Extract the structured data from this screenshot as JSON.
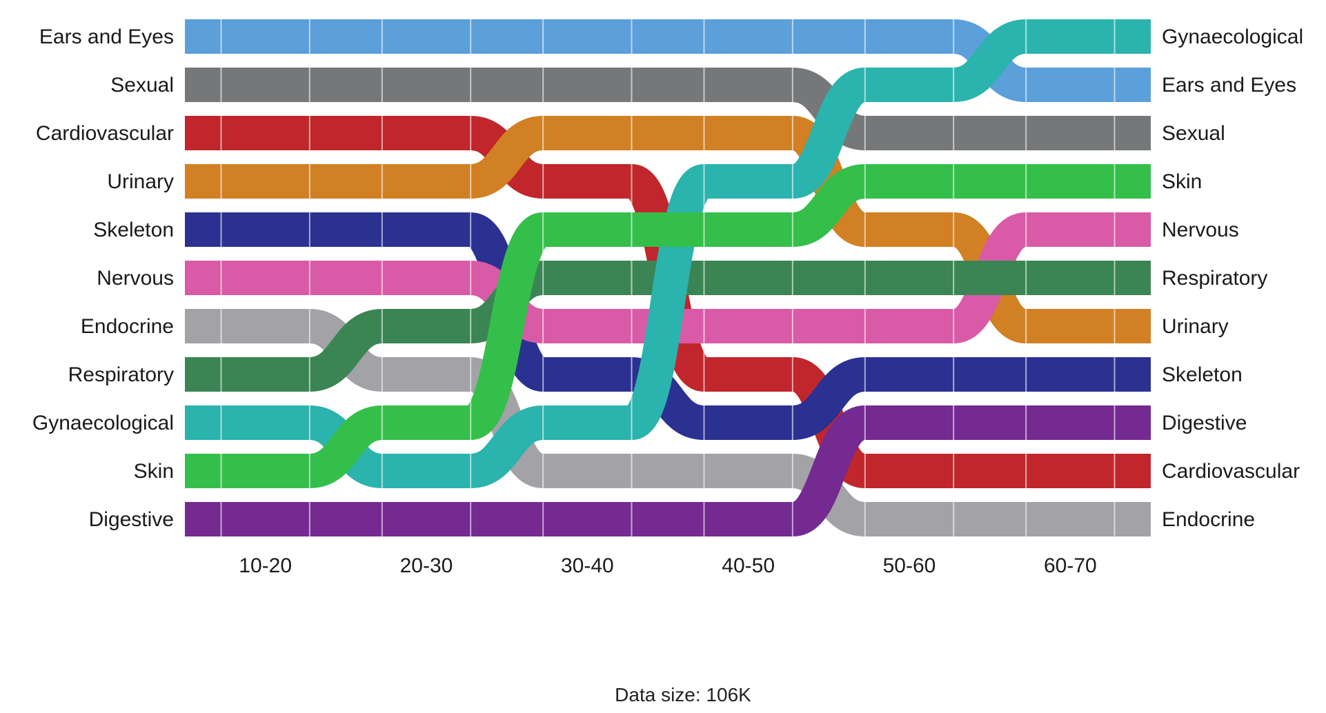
{
  "chart_data": {
    "type": "area",
    "x_groups": [
      "10-20",
      "20-30",
      "30-40",
      "40-50",
      "50-60",
      "60-70"
    ],
    "footer": "Data size: 106K",
    "columns": [
      {
        "label": "10-20",
        "order": [
          "Ears and Eyes",
          "Sexual",
          "Cardiovascular",
          "Urinary",
          "Skeleton",
          "Nervous",
          "Endocrine",
          "Respiratory",
          "Gynaecological",
          "Skin",
          "Digestive"
        ]
      },
      {
        "label": "20-30",
        "order": [
          "Ears and Eyes",
          "Sexual",
          "Cardiovascular",
          "Urinary",
          "Skeleton",
          "Nervous",
          "Respiratory",
          "Endocrine",
          "Skin",
          "Gynaecological",
          "Digestive"
        ]
      },
      {
        "label": "30-40",
        "order": [
          "Ears and Eyes",
          "Sexual",
          "Urinary",
          "Cardiovascular",
          "Skin",
          "Respiratory",
          "Nervous",
          "Skeleton",
          "Gynaecological",
          "Endocrine",
          "Digestive"
        ]
      },
      {
        "label": "40-50",
        "order": [
          "Ears and Eyes",
          "Sexual",
          "Urinary",
          "Gynaecological",
          "Skin",
          "Respiratory",
          "Nervous",
          "Cardiovascular",
          "Skeleton",
          "Endocrine",
          "Digestive"
        ]
      },
      {
        "label": "50-60",
        "order": [
          "Ears and Eyes",
          "Gynaecological",
          "Sexual",
          "Skin",
          "Urinary",
          "Respiratory",
          "Nervous",
          "Skeleton",
          "Digestive",
          "Cardiovascular",
          "Endocrine"
        ]
      },
      {
        "label": "60-70",
        "order": [
          "Gynaecological",
          "Ears and Eyes",
          "Sexual",
          "Skin",
          "Nervous",
          "Respiratory",
          "Urinary",
          "Skeleton",
          "Digestive",
          "Cardiovascular",
          "Endocrine"
        ]
      }
    ],
    "series": [
      {
        "name": "Ears and Eyes",
        "color": "#5b9fdb"
      },
      {
        "name": "Sexual",
        "color": "#767779"
      },
      {
        "name": "Cardiovascular",
        "color": "#c0262b"
      },
      {
        "name": "Urinary",
        "color": "#d18023"
      },
      {
        "name": "Skeleton",
        "color": "#2b3191"
      },
      {
        "name": "Nervous",
        "color": "#d95aa6"
      },
      {
        "name": "Endocrine",
        "color": "#a3a2a6"
      },
      {
        "name": "Respiratory",
        "color": "#3a8553"
      },
      {
        "name": "Gynaecological",
        "color": "#2bb3ad"
      },
      {
        "name": "Skin",
        "color": "#34bf4a"
      },
      {
        "name": "Digestive",
        "color": "#742a91"
      }
    ],
    "left_labels": [
      "Ears and Eyes",
      "Sexual",
      "Cardiovascular",
      "Urinary",
      "Skeleton",
      "Nervous",
      "Endocrine",
      "Respiratory",
      "Gynaecological",
      "Skin",
      "Digestive"
    ],
    "right_labels": [
      "Gynaecological",
      "Ears and Eyes",
      "Sexual",
      "Skin",
      "Nervous",
      "Respiratory",
      "Urinary",
      "Skeleton",
      "Digestive",
      "Cardiovascular",
      "Endocrine"
    ],
    "legend": "left and right labels"
  }
}
